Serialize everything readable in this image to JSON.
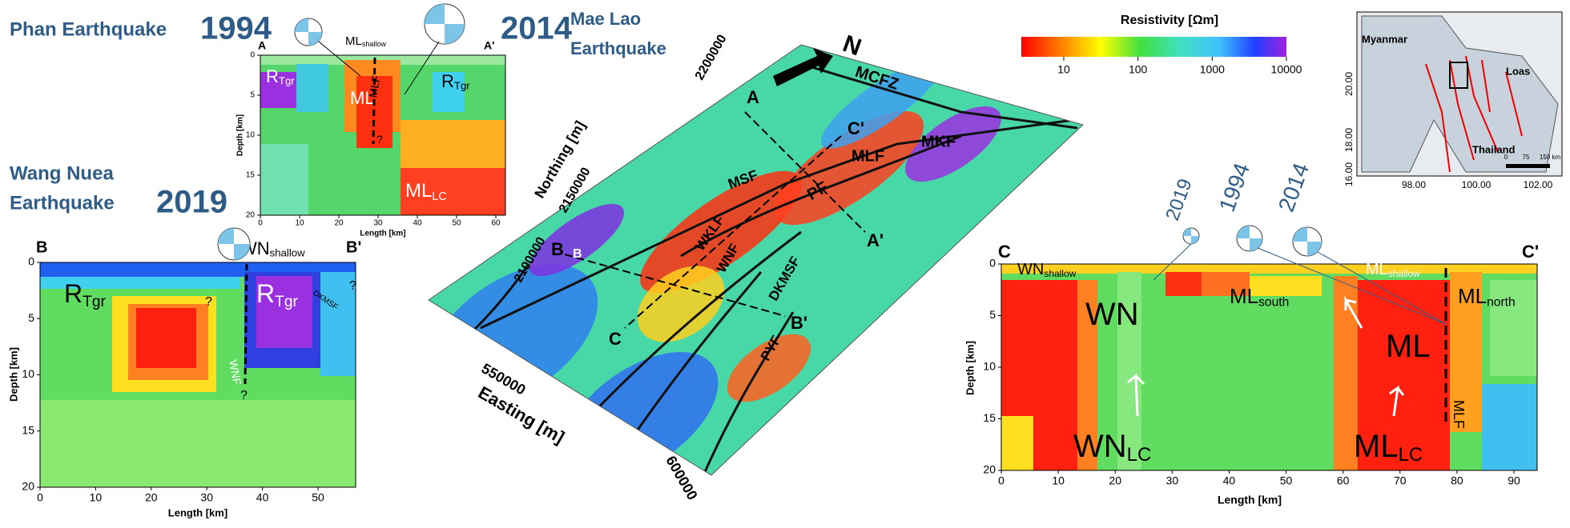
{
  "panel_a": {
    "title": "Phan Earthquake",
    "year": "1994",
    "start": "A",
    "end": "A'",
    "labels": [
      {
        "text": "ML",
        "sub": "shallow"
      },
      {
        "text": "R",
        "sub": "Tgr"
      },
      {
        "text": "ML"
      },
      {
        "text": "MLF"
      },
      {
        "text": "R",
        "sub": "Tgr"
      },
      {
        "text": "ML",
        "sub": "LC"
      },
      {
        "text": "?"
      }
    ],
    "ylabel": "Depth [km]",
    "xlabel": "Length [km]",
    "xticks": [
      0,
      10,
      20,
      30,
      40,
      50,
      60
    ],
    "yticks": [
      0,
      5,
      10,
      15,
      20
    ]
  },
  "mae_lao": {
    "year": "2014",
    "title": "Mae Lao",
    "subtitle": "Earthquake"
  },
  "panel_b": {
    "title": "Wang Nuea",
    "subtitle": "Earthquake",
    "year": "2019",
    "start": "B",
    "end": "B'",
    "labels": [
      {
        "text": "WN",
        "sub": "shallow"
      },
      {
        "text": "R",
        "sub": "Tgr"
      },
      {
        "text": "R",
        "sub": "Tgr"
      },
      {
        "text": "?"
      },
      {
        "text": "?"
      },
      {
        "text": "?"
      },
      {
        "text": "WNF"
      },
      {
        "text": "DKMSF"
      }
    ],
    "ylabel": "Depth [km]",
    "xlabel": "Length [km]",
    "xticks": [
      0,
      10,
      20,
      30,
      40,
      50
    ],
    "yticks": [
      0,
      5,
      10,
      15,
      20
    ]
  },
  "map": {
    "north": "N",
    "labels": [
      "MCFZ",
      "A",
      "C'",
      "MKF",
      "MLF",
      "MSF",
      "PF",
      "WKLF",
      "B",
      "B",
      "WNF",
      "A'",
      "DKMSF",
      "B'",
      "C",
      "PYF"
    ],
    "ylabel": "Northing [m]",
    "xlabel": "Easting [m]",
    "yticks": [
      "2200000",
      "2150000",
      "2100000"
    ],
    "xticks": [
      "550000",
      "600000"
    ]
  },
  "colorbar": {
    "title": "Resistivity [Ωm]",
    "ticks": [
      10,
      100,
      1000,
      10000
    ]
  },
  "inset": {
    "labels": [
      "Myanmar",
      "Loas",
      "Thailand"
    ],
    "yticks": [
      "20.00",
      "18.00",
      "16.00"
    ],
    "xticks": [
      "98.00",
      "100.00",
      "102.00"
    ],
    "scale": [
      "0",
      "75",
      "150 km"
    ]
  },
  "panel_c": {
    "start": "C",
    "end": "C'",
    "years": [
      "2019",
      "1994",
      "2014"
    ],
    "labels": [
      {
        "text": "WN",
        "sub": "shallow"
      },
      {
        "text": "ML",
        "sub": "south"
      },
      {
        "text": "ML",
        "sub": "shallow"
      },
      {
        "text": "ML",
        "sub": "north"
      },
      {
        "text": "WN"
      },
      {
        "text": "ML"
      },
      {
        "text": "MLF"
      },
      {
        "text": "WN",
        "sub": "LC"
      },
      {
        "text": "ML",
        "sub": "LC"
      }
    ],
    "ylabel": "Depth [km]",
    "xlabel": "Length [km]",
    "xticks": [
      0,
      10,
      20,
      30,
      40,
      50,
      60,
      70,
      80,
      90
    ],
    "yticks": [
      0,
      5,
      10,
      15,
      20
    ]
  }
}
